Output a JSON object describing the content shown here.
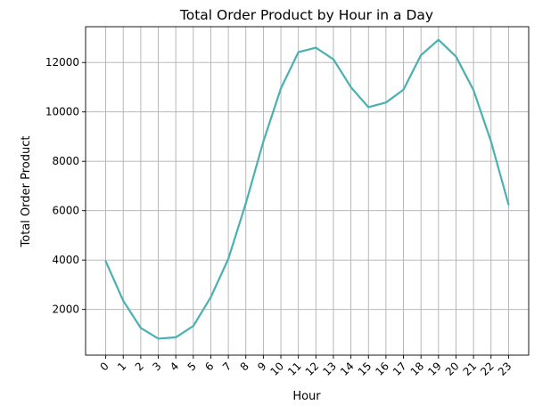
{
  "chart_data": {
    "type": "line",
    "title": "Total Order Product by Hour in a Day",
    "xlabel": "Hour",
    "ylabel": "Total Order Product",
    "x": [
      0,
      1,
      2,
      3,
      4,
      5,
      6,
      7,
      8,
      9,
      10,
      11,
      12,
      13,
      14,
      15,
      16,
      17,
      18,
      19,
      20,
      21,
      22,
      23
    ],
    "x_tick_labels": [
      "0",
      "1",
      "2",
      "3",
      "4",
      "5",
      "6",
      "7",
      "8",
      "9",
      "10",
      "11",
      "12",
      "13",
      "14",
      "15",
      "16",
      "17",
      "18",
      "19",
      "20",
      "21",
      "22",
      "23"
    ],
    "series": [
      {
        "color": "#4ab0b0",
        "values": [
          3950,
          2350,
          1250,
          820,
          870,
          1330,
          2500,
          4050,
          6300,
          8800,
          10950,
          12420,
          12600,
          12130,
          11000,
          10190,
          10380,
          10900,
          12300,
          12920,
          12240,
          10880,
          8800,
          6250
        ]
      }
    ],
    "yticks": [
      2000,
      4000,
      6000,
      8000,
      10000,
      12000
    ],
    "ytick_labels": [
      "2000",
      "4000",
      "6000",
      "8000",
      "10000",
      "12000"
    ],
    "xlim": [
      -1.15,
      24.15
    ],
    "ylim": [
      150,
      13450
    ],
    "grid": true,
    "x_tick_rotation": 45
  }
}
